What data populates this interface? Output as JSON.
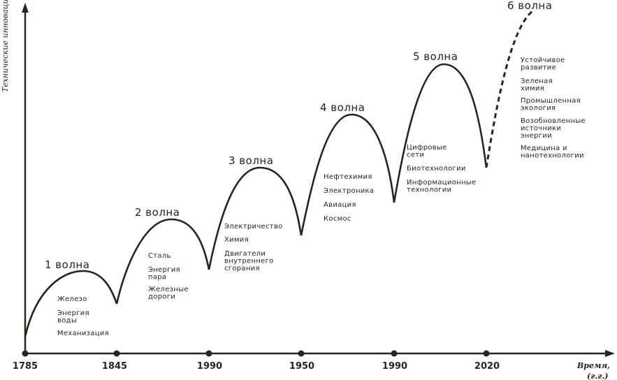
{
  "y_axis_label": "Технические инновации",
  "x_axis_label": {
    "line1": "Время,",
    "line2": "(г.г.)"
  },
  "years": [
    "1785",
    "1845",
    "1990",
    "1950",
    "1990",
    "2020"
  ],
  "waves": [
    {
      "title": "1 волна",
      "items": [
        "Железо",
        "Энергия воды",
        "Механизация"
      ]
    },
    {
      "title": "2 волна",
      "items": [
        "Сталь",
        "Энергия пара",
        "Железные дороги"
      ]
    },
    {
      "title": "3 волна",
      "items": [
        "Электричество",
        "Химия",
        "Двигатели внутреннего сгорания"
      ]
    },
    {
      "title": "4 волна",
      "items": [
        "Нефтехимия",
        "Электроника",
        "Авиация",
        "Космос"
      ]
    },
    {
      "title": "5 волна",
      "items": [
        "Цифровые сети",
        "Биотехнологии",
        "Информационные технологии"
      ]
    },
    {
      "title": "6 волна",
      "items": [
        "Устойчивое развитие",
        "Зеленая химия",
        "Промышленная экология",
        "Возобновленные источники энергии",
        "Медицина и нанотехнологии"
      ]
    }
  ]
}
